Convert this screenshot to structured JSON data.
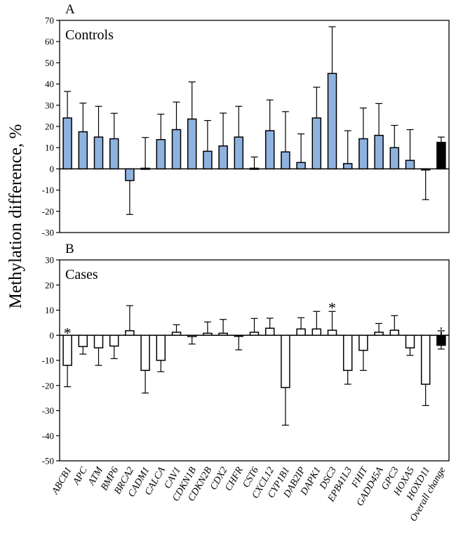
{
  "figure": {
    "ylabel": "Methylation difference, %",
    "categories": [
      "ABCB1",
      "APC",
      "ATM",
      "BMP6",
      "BRCA2",
      "CADM1",
      "CALCA",
      "CAV1",
      "CDKN1B",
      "CDKN2B",
      "CDX2",
      "CHFR",
      "CST6",
      "CXCL12",
      "CYP1B1",
      "DAB2IP",
      "DAPK1",
      "DSC3",
      "EPB41L3",
      "FHIT",
      "GADD45A",
      "GPC3",
      "HOXA5",
      "HOXD11",
      "Overall change"
    ]
  },
  "colors": {
    "control_bar": "#8fb2df",
    "case_bar": "#ffffff",
    "overall_bar": "#000000",
    "axis": "#000000"
  },
  "chart_data": [
    {
      "type": "bar",
      "panel": "A",
      "title": "Controls",
      "ylabel": "Methylation difference, %",
      "ylim": [
        -30,
        70
      ],
      "yticks": [
        -30,
        -20,
        -10,
        0,
        10,
        20,
        30,
        40,
        50,
        60,
        70
      ],
      "categories": [
        "ABCB1",
        "APC",
        "ATM",
        "BMP6",
        "BRCA2",
        "CADM1",
        "CALCA",
        "CAV1",
        "CDKN1B",
        "CDKN2B",
        "CDX2",
        "CHFR",
        "CST6",
        "CXCL12",
        "CYP1B1",
        "DAB2IP",
        "DAPK1",
        "DSC3",
        "EPB41L3",
        "FHIT",
        "GADD45A",
        "GPC3",
        "HOXA5",
        "HOXD11",
        "Overall change"
      ],
      "values": [
        24,
        17.5,
        15,
        14.2,
        -5.5,
        0.3,
        13.8,
        18.5,
        23.5,
        8.3,
        10.8,
        15,
        0.3,
        18,
        8,
        3,
        24,
        45,
        2.5,
        14.2,
        15.8,
        10,
        4,
        -0.5,
        12.5
      ],
      "error": [
        12.5,
        13.5,
        14.5,
        12,
        16,
        14.5,
        12,
        13,
        17.5,
        14.5,
        15.5,
        14.5,
        5.3,
        14.5,
        19,
        13.5,
        14.5,
        22,
        15.5,
        14.5,
        15,
        10.5,
        14.5,
        14,
        2.5
      ],
      "annotations": []
    },
    {
      "type": "bar",
      "panel": "B",
      "title": "Cases",
      "ylim": [
        -50,
        30
      ],
      "yticks": [
        -50,
        -40,
        -30,
        -20,
        -10,
        0,
        10,
        20,
        30
      ],
      "categories": [
        "ABCB1",
        "APC",
        "ATM",
        "BMP6",
        "BRCA2",
        "CADM1",
        "CALCA",
        "CAV1",
        "CDKN1B",
        "CDKN2B",
        "CDX2",
        "CHFR",
        "CST6",
        "CXCL12",
        "CYP1B1",
        "DAB2IP",
        "DAPK1",
        "DSC3",
        "EPB41L3",
        "FHIT",
        "GADD45A",
        "GPC3",
        "HOXA5",
        "HOXD11",
        "Overall change"
      ],
      "values": [
        -12,
        -4.5,
        -5,
        -4.3,
        1.8,
        -14,
        -10,
        1.2,
        -0.5,
        0.8,
        0.8,
        -0.3,
        1.2,
        2.8,
        -20.8,
        2.5,
        2.5,
        2,
        -14,
        -6,
        1.2,
        2,
        -5,
        -19.5,
        -4
      ],
      "error": [
        8.5,
        3,
        7,
        5,
        10,
        9,
        4.5,
        3,
        3,
        4.5,
        5.5,
        5.5,
        5.5,
        4,
        15,
        4.5,
        7,
        7.5,
        5.5,
        8,
        3.5,
        5.8,
        3,
        8.5,
        1.5
      ],
      "annotations": [
        {
          "category": "ABCB1",
          "symbol": "*"
        },
        {
          "category": "DSC3",
          "symbol": "*"
        },
        {
          "category": "Overall change",
          "symbol": "†"
        }
      ]
    }
  ]
}
